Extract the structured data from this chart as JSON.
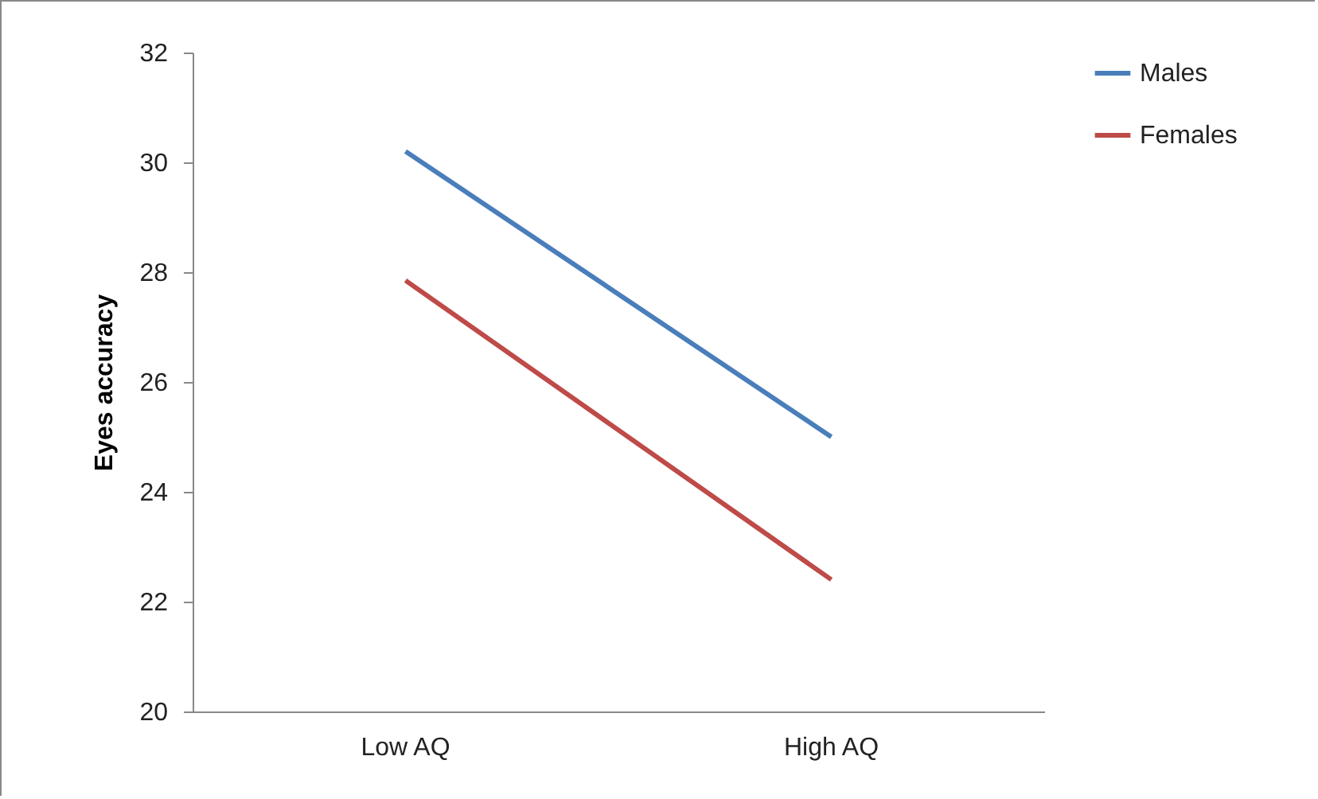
{
  "chart_data": {
    "type": "line",
    "ylabel": "Eyes accuracy",
    "categories": [
      "Low AQ",
      "High AQ"
    ],
    "series": [
      {
        "name": "Males",
        "color": "#4a7ebb",
        "values": [
          30.2,
          25.0
        ]
      },
      {
        "name": "Females",
        "color": "#be4b48",
        "values": [
          27.85,
          22.4
        ]
      }
    ],
    "ylim": [
      20,
      32
    ],
    "yticks": [
      20,
      22,
      24,
      26,
      28,
      30,
      32
    ],
    "grid": false,
    "legend": "right",
    "marker": "none",
    "line_style": "solid"
  }
}
